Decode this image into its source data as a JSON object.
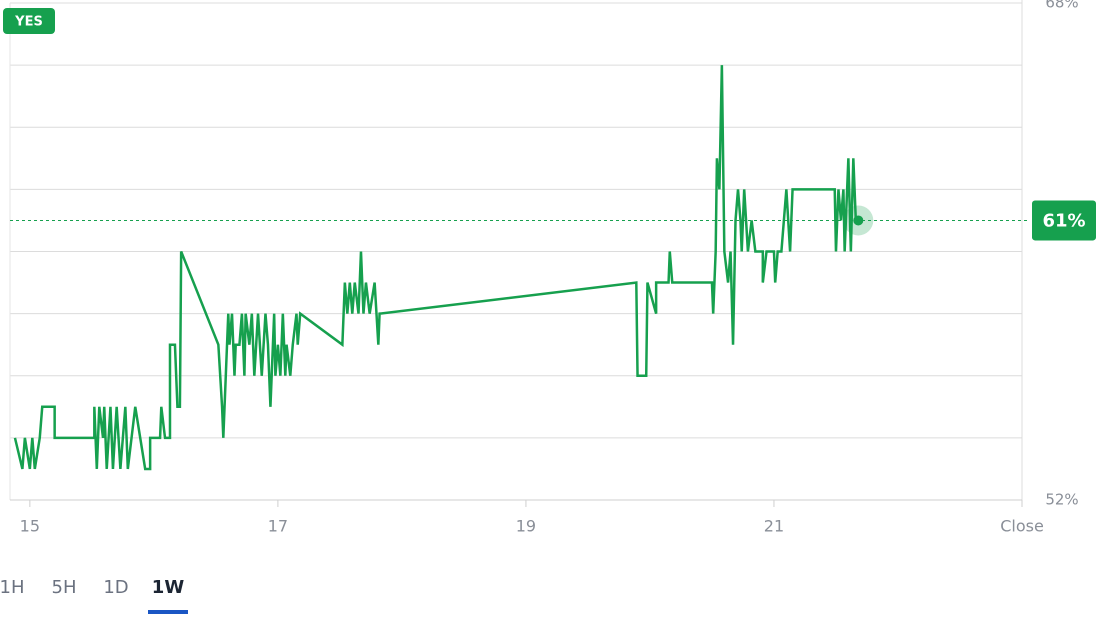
{
  "chart_data": {
    "type": "line",
    "x": [
      14.88,
      14.94,
      14.96,
      15.0,
      15.02,
      15.04,
      15.08,
      15.1,
      15.2,
      15.2,
      15.52,
      15.52,
      15.54,
      15.56,
      15.59,
      15.6,
      15.62,
      15.65,
      15.67,
      15.7,
      15.73,
      15.77,
      15.79,
      15.82,
      15.85,
      15.89,
      15.93,
      15.97,
      15.97,
      16.05,
      16.06,
      16.09,
      16.13,
      16.13,
      16.17,
      16.19,
      16.21,
      16.22,
      16.52,
      16.55,
      16.56,
      16.58,
      16.6,
      16.61,
      16.63,
      16.65,
      16.66,
      16.69,
      16.71,
      16.73,
      16.74,
      16.77,
      16.79,
      16.81,
      16.84,
      16.87,
      16.9,
      16.92,
      16.94,
      16.97,
      16.98,
      17.0,
      17.02,
      17.04,
      17.06,
      17.07,
      17.1,
      17.12,
      17.15,
      17.16,
      17.18,
      17.52,
      17.54,
      17.56,
      17.58,
      17.6,
      17.62,
      17.65,
      17.67,
      17.69,
      17.71,
      17.74,
      17.78,
      17.81,
      17.82,
      19.89,
      19.9,
      19.97,
      19.98,
      20.05,
      20.05,
      20.15,
      20.16,
      20.18,
      20.5,
      20.51,
      20.53,
      20.54,
      20.56,
      20.58,
      20.6,
      20.63,
      20.65,
      20.67,
      20.69,
      20.71,
      20.73,
      20.74,
      20.76,
      20.79,
      20.82,
      20.85,
      20.91,
      20.91,
      20.94,
      21.0,
      21.01,
      21.03,
      21.06,
      21.1,
      21.13,
      21.15,
      21.37,
      21.49,
      21.5,
      21.52,
      21.54,
      21.56,
      21.57,
      21.6,
      21.62,
      21.64,
      21.66,
      21.68
    ],
    "series": [
      {
        "name": "YES",
        "color": "#16a04e",
        "values": [
          54,
          53,
          54,
          53,
          54,
          53,
          54,
          55,
          55,
          54,
          54,
          55,
          53,
          55,
          54,
          55,
          53,
          55,
          53,
          55,
          53,
          55,
          53,
          54,
          55,
          54,
          53,
          53,
          54,
          54,
          55,
          54,
          54,
          57,
          57,
          55,
          55,
          60,
          57,
          55,
          54,
          56,
          58,
          57,
          58,
          56,
          57,
          57,
          58,
          56,
          58,
          57,
          58,
          56,
          58,
          56,
          58,
          57,
          55,
          58,
          56,
          57,
          56,
          58,
          56,
          57,
          56,
          57,
          58,
          57,
          58,
          57,
          59,
          58,
          59,
          58,
          59,
          58,
          60,
          58,
          59,
          58,
          59,
          57,
          58,
          59,
          56,
          56,
          59,
          58,
          59,
          59,
          60,
          59,
          59,
          58,
          60,
          63,
          62,
          66,
          60,
          59,
          60,
          57,
          61,
          62,
          61,
          60,
          62,
          60,
          61,
          60,
          60,
          59,
          60,
          60,
          59,
          60,
          60,
          62,
          60,
          62,
          62,
          62,
          60,
          62,
          61,
          62,
          60,
          63,
          60,
          63,
          61,
          61
        ]
      }
    ],
    "current": {
      "value": 61,
      "label": "61%"
    },
    "xlim": [
      14.84,
      23
    ],
    "xticks": [
      15,
      17,
      19,
      21,
      {
        "value": 23,
        "label": "Close"
      }
    ],
    "ylim": [
      52,
      68
    ],
    "yticks": [
      {
        "value": 52,
        "label": "52%"
      },
      {
        "value": 54,
        "label": null
      },
      {
        "value": 56,
        "label": null
      },
      {
        "value": 58,
        "label": null
      },
      {
        "value": 60,
        "label": null
      },
      {
        "value": 62,
        "label": null
      },
      {
        "value": 64,
        "label": null
      },
      {
        "value": 66,
        "label": null
      },
      {
        "value": 68,
        "label": "68%"
      }
    ],
    "grid": true
  },
  "controls": {
    "ranges": [
      "1H",
      "5H",
      "1D",
      "1W"
    ],
    "selected": 3
  }
}
